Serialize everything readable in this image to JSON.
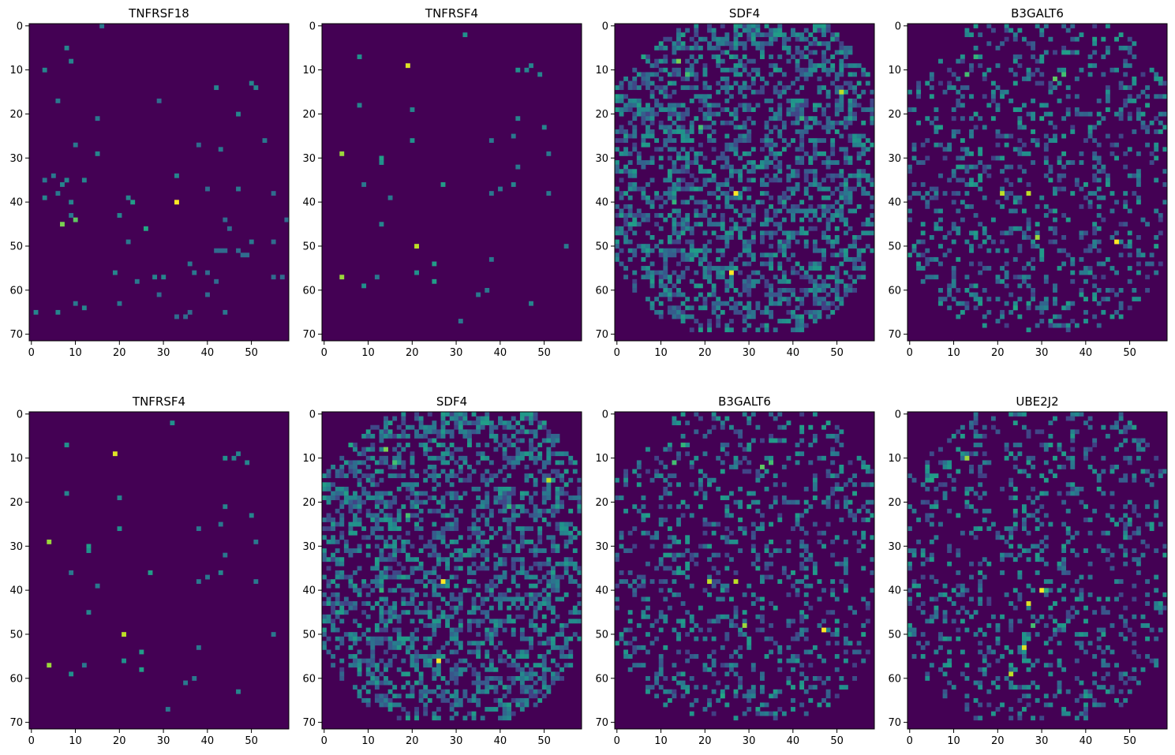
{
  "figure": {
    "colormap": "viridis",
    "background_color": "#440154",
    "layout": "2 rows x 4 columns"
  },
  "chart_data": [
    {
      "type": "heatmap",
      "title": "TNFRSF18",
      "xlim": [
        0,
        59
      ],
      "ylim": [
        71,
        0
      ],
      "xticks": [
        "0",
        "10",
        "20",
        "30",
        "40",
        "50"
      ],
      "yticks": [
        "0",
        "10",
        "20",
        "30",
        "40",
        "50",
        "60",
        "70"
      ],
      "grid": false,
      "points": [
        [
          16,
          0,
          0.4
        ],
        [
          8,
          5,
          0.45
        ],
        [
          9,
          8,
          0.45
        ],
        [
          3,
          10,
          0.45
        ],
        [
          6,
          17,
          0.4
        ],
        [
          29,
          17,
          0.35
        ],
        [
          42,
          14,
          0.45
        ],
        [
          50,
          13,
          0.45
        ],
        [
          51,
          14,
          0.45
        ],
        [
          15,
          21,
          0.4
        ],
        [
          47,
          20,
          0.45
        ],
        [
          53,
          26,
          0.4
        ],
        [
          10,
          27,
          0.4
        ],
        [
          38,
          27,
          0.35
        ],
        [
          43,
          28,
          0.4
        ],
        [
          15,
          29,
          0.45
        ],
        [
          5,
          34,
          0.4
        ],
        [
          3,
          35,
          0.4
        ],
        [
          8,
          35,
          0.45
        ],
        [
          12,
          35,
          0.45
        ],
        [
          33,
          34,
          0.45
        ],
        [
          7,
          36,
          0.45
        ],
        [
          6,
          38,
          0.4
        ],
        [
          40,
          37,
          0.35
        ],
        [
          47,
          37,
          0.4
        ],
        [
          55,
          38,
          0.35
        ],
        [
          3,
          39,
          0.45
        ],
        [
          9,
          40,
          0.45
        ],
        [
          22,
          39,
          0.45
        ],
        [
          23,
          40,
          0.55
        ],
        [
          33,
          40,
          1.0
        ],
        [
          7,
          45,
          0.8
        ],
        [
          10,
          44,
          0.75
        ],
        [
          9,
          43,
          0.4
        ],
        [
          26,
          46,
          0.6
        ],
        [
          20,
          43,
          0.45
        ],
        [
          44,
          44,
          0.35
        ],
        [
          58,
          44,
          0.35
        ],
        [
          45,
          46,
          0.35
        ],
        [
          22,
          49,
          0.4
        ],
        [
          50,
          49,
          0.4
        ],
        [
          55,
          49,
          0.35
        ],
        [
          42,
          51,
          0.35
        ],
        [
          43,
          51,
          0.35
        ],
        [
          44,
          51,
          0.35
        ],
        [
          47,
          51,
          0.35
        ],
        [
          48,
          52,
          0.35
        ],
        [
          49,
          52,
          0.35
        ],
        [
          36,
          54,
          0.4
        ],
        [
          37,
          56,
          0.4
        ],
        [
          19,
          56,
          0.45
        ],
        [
          40,
          56,
          0.35
        ],
        [
          55,
          57,
          0.35
        ],
        [
          57,
          57,
          0.35
        ],
        [
          24,
          58,
          0.4
        ],
        [
          28,
          57,
          0.45
        ],
        [
          30,
          57,
          0.45
        ],
        [
          42,
          58,
          0.35
        ],
        [
          40,
          61,
          0.35
        ],
        [
          29,
          61,
          0.35
        ],
        [
          20,
          63,
          0.4
        ],
        [
          10,
          63,
          0.4
        ],
        [
          12,
          64,
          0.45
        ],
        [
          1,
          65,
          0.45
        ],
        [
          6,
          65,
          0.45
        ],
        [
          44,
          65,
          0.4
        ],
        [
          36,
          65,
          0.35
        ],
        [
          35,
          66,
          0.35
        ],
        [
          33,
          66,
          0.35
        ]
      ]
    },
    {
      "type": "heatmap",
      "title": "TNFRSF4",
      "xlim": [
        0,
        59
      ],
      "ylim": [
        71,
        0
      ],
      "xticks": [
        "0",
        "10",
        "20",
        "30",
        "40",
        "50"
      ],
      "yticks": [
        "0",
        "10",
        "20",
        "30",
        "40",
        "50",
        "60",
        "70"
      ],
      "grid": false,
      "points": [
        [
          32,
          2,
          0.5
        ],
        [
          8,
          7,
          0.5
        ],
        [
          19,
          9,
          0.95
        ],
        [
          44,
          10,
          0.5
        ],
        [
          46,
          10,
          0.45
        ],
        [
          47,
          9,
          0.45
        ],
        [
          49,
          11,
          0.45
        ],
        [
          8,
          18,
          0.45
        ],
        [
          20,
          19,
          0.45
        ],
        [
          50,
          23,
          0.45
        ],
        [
          44,
          21,
          0.45
        ],
        [
          20,
          26,
          0.5
        ],
        [
          43,
          25,
          0.4
        ],
        [
          38,
          26,
          0.4
        ],
        [
          4,
          29,
          0.85
        ],
        [
          13,
          30,
          0.55
        ],
        [
          13,
          31,
          0.5
        ],
        [
          51,
          29,
          0.4
        ],
        [
          44,
          32,
          0.4
        ],
        [
          9,
          36,
          0.4
        ],
        [
          27,
          36,
          0.55
        ],
        [
          38,
          38,
          0.4
        ],
        [
          40,
          37,
          0.4
        ],
        [
          43,
          36,
          0.45
        ],
        [
          51,
          38,
          0.4
        ],
        [
          15,
          39,
          0.4
        ],
        [
          13,
          45,
          0.45
        ],
        [
          55,
          50,
          0.4
        ],
        [
          21,
          50,
          0.9
        ],
        [
          25,
          54,
          0.55
        ],
        [
          4,
          57,
          0.85
        ],
        [
          12,
          57,
          0.4
        ],
        [
          9,
          59,
          0.5
        ],
        [
          21,
          56,
          0.5
        ],
        [
          25,
          58,
          0.55
        ],
        [
          38,
          53,
          0.4
        ],
        [
          35,
          61,
          0.4
        ],
        [
          37,
          60,
          0.4
        ],
        [
          31,
          67,
          0.4
        ],
        [
          47,
          63,
          0.45
        ]
      ]
    },
    {
      "type": "heatmap",
      "title": "SDF4",
      "xlim": [
        0,
        59
      ],
      "ylim": [
        71,
        0
      ],
      "xticks": [
        "0",
        "10",
        "20",
        "30",
        "40",
        "50"
      ],
      "yticks": [
        "0",
        "10",
        "20",
        "30",
        "40",
        "50",
        "60",
        "70"
      ],
      "grid": false,
      "dense": {
        "seed": 4,
        "density": 0.42,
        "highlights": [
          [
            27,
            38,
            1.0
          ],
          [
            26,
            56,
            1.0
          ],
          [
            51,
            15,
            0.9
          ],
          [
            14,
            8,
            0.8
          ],
          [
            19,
            23,
            0.7
          ],
          [
            13,
            40,
            0.65
          ],
          [
            42,
            21,
            0.65
          ],
          [
            16,
            11,
            0.7
          ],
          [
            6,
            7,
            0.6
          ]
        ]
      }
    },
    {
      "type": "heatmap",
      "title": "B3GALT6",
      "xlim": [
        0,
        59
      ],
      "ylim": [
        71,
        0
      ],
      "xticks": [
        "0",
        "10",
        "20",
        "30",
        "40",
        "50"
      ],
      "yticks": [
        "0",
        "10",
        "20",
        "30",
        "40",
        "50",
        "60",
        "70"
      ],
      "grid": false,
      "dense": {
        "seed": 6,
        "density": 0.2,
        "highlights": [
          [
            21,
            38,
            0.9
          ],
          [
            27,
            38,
            0.9
          ],
          [
            47,
            49,
            1.0
          ],
          [
            29,
            48,
            0.85
          ],
          [
            33,
            12,
            0.75
          ],
          [
            35,
            11,
            0.7
          ],
          [
            13,
            11,
            0.7
          ],
          [
            15,
            7,
            0.65
          ],
          [
            24,
            64,
            0.6
          ],
          [
            30,
            21,
            0.6
          ]
        ]
      }
    },
    {
      "type": "heatmap",
      "title": "TNFRSF4",
      "xlim": [
        0,
        59
      ],
      "ylim": [
        71,
        0
      ],
      "xticks": [
        "0",
        "10",
        "20",
        "30",
        "40",
        "50"
      ],
      "yticks": [
        "0",
        "10",
        "20",
        "30",
        "40",
        "50",
        "60",
        "70"
      ],
      "grid": false,
      "points": [
        [
          32,
          2,
          0.5
        ],
        [
          8,
          7,
          0.5
        ],
        [
          19,
          9,
          0.95
        ],
        [
          44,
          10,
          0.5
        ],
        [
          46,
          10,
          0.45
        ],
        [
          47,
          9,
          0.45
        ],
        [
          49,
          11,
          0.45
        ],
        [
          8,
          18,
          0.45
        ],
        [
          20,
          19,
          0.45
        ],
        [
          50,
          23,
          0.45
        ],
        [
          44,
          21,
          0.45
        ],
        [
          20,
          26,
          0.5
        ],
        [
          43,
          25,
          0.4
        ],
        [
          38,
          26,
          0.4
        ],
        [
          4,
          29,
          0.85
        ],
        [
          13,
          30,
          0.55
        ],
        [
          13,
          31,
          0.5
        ],
        [
          51,
          29,
          0.4
        ],
        [
          44,
          32,
          0.4
        ],
        [
          9,
          36,
          0.4
        ],
        [
          27,
          36,
          0.55
        ],
        [
          38,
          38,
          0.4
        ],
        [
          40,
          37,
          0.4
        ],
        [
          43,
          36,
          0.45
        ],
        [
          51,
          38,
          0.4
        ],
        [
          15,
          39,
          0.4
        ],
        [
          13,
          45,
          0.45
        ],
        [
          55,
          50,
          0.4
        ],
        [
          21,
          50,
          0.9
        ],
        [
          25,
          54,
          0.55
        ],
        [
          4,
          57,
          0.85
        ],
        [
          12,
          57,
          0.4
        ],
        [
          9,
          59,
          0.5
        ],
        [
          21,
          56,
          0.5
        ],
        [
          25,
          58,
          0.55
        ],
        [
          38,
          53,
          0.4
        ],
        [
          35,
          61,
          0.4
        ],
        [
          37,
          60,
          0.4
        ],
        [
          31,
          67,
          0.4
        ],
        [
          47,
          63,
          0.45
        ]
      ]
    },
    {
      "type": "heatmap",
      "title": "SDF4",
      "xlim": [
        0,
        59
      ],
      "ylim": [
        71,
        0
      ],
      "xticks": [
        "0",
        "10",
        "20",
        "30",
        "40",
        "50"
      ],
      "yticks": [
        "0",
        "10",
        "20",
        "30",
        "40",
        "50",
        "60",
        "70"
      ],
      "grid": false,
      "dense": {
        "seed": 4,
        "density": 0.42,
        "highlights": [
          [
            27,
            38,
            1.0
          ],
          [
            26,
            56,
            1.0
          ],
          [
            51,
            15,
            0.9
          ],
          [
            14,
            8,
            0.8
          ],
          [
            19,
            23,
            0.7
          ],
          [
            13,
            40,
            0.65
          ],
          [
            42,
            21,
            0.65
          ],
          [
            16,
            11,
            0.7
          ],
          [
            6,
            7,
            0.6
          ]
        ]
      }
    },
    {
      "type": "heatmap",
      "title": "B3GALT6",
      "xlim": [
        0,
        59
      ],
      "ylim": [
        71,
        0
      ],
      "xticks": [
        "0",
        "10",
        "20",
        "30",
        "40",
        "50"
      ],
      "yticks": [
        "0",
        "10",
        "20",
        "30",
        "40",
        "50",
        "60",
        "70"
      ],
      "grid": false,
      "dense": {
        "seed": 6,
        "density": 0.2,
        "highlights": [
          [
            21,
            38,
            0.9
          ],
          [
            27,
            38,
            0.9
          ],
          [
            47,
            49,
            1.0
          ],
          [
            29,
            48,
            0.85
          ],
          [
            33,
            12,
            0.75
          ],
          [
            35,
            11,
            0.7
          ],
          [
            13,
            11,
            0.7
          ],
          [
            15,
            7,
            0.65
          ],
          [
            24,
            64,
            0.6
          ],
          [
            30,
            21,
            0.6
          ]
        ]
      }
    },
    {
      "type": "heatmap",
      "title": "UBE2J2",
      "xlim": [
        0,
        59
      ],
      "ylim": [
        71,
        0
      ],
      "xticks": [
        "0",
        "10",
        "20",
        "30",
        "40",
        "50"
      ],
      "yticks": [
        "0",
        "10",
        "20",
        "30",
        "40",
        "50",
        "60",
        "70"
      ],
      "grid": false,
      "dense": {
        "seed": 9,
        "density": 0.2,
        "highlights": [
          [
            30,
            40,
            1.0
          ],
          [
            27,
            43,
            0.95
          ],
          [
            26,
            53,
            0.95
          ],
          [
            23,
            59,
            0.9
          ],
          [
            13,
            10,
            0.85
          ],
          [
            28,
            48,
            0.7
          ],
          [
            31,
            40,
            0.65
          ],
          [
            5,
            15,
            0.6
          ],
          [
            24,
            22,
            0.55
          ]
        ]
      }
    }
  ]
}
